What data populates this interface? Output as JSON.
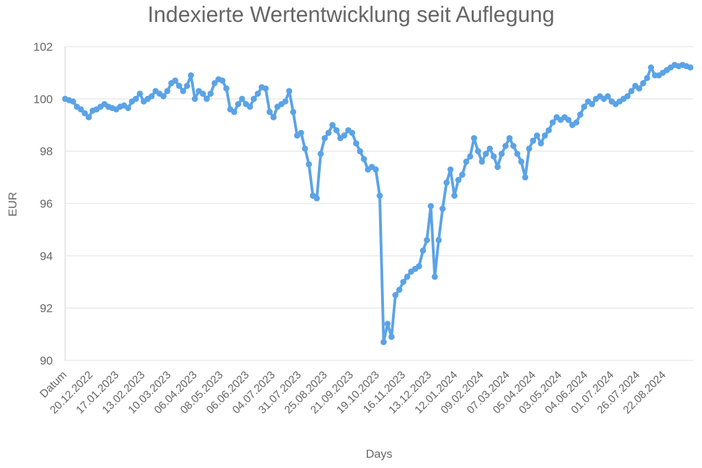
{
  "chart_data": {
    "type": "line",
    "title": "Indexierte Wertentwicklung seit Auflegung",
    "xlabel": "Days",
    "ylabel": "EUR",
    "ylim": [
      90,
      102
    ],
    "yticks": [
      90,
      92,
      94,
      96,
      98,
      100,
      102
    ],
    "grid": "horizontal",
    "line_color": "#5ba3e6",
    "x_tick_labels": [
      "Datum",
      "20.12.2022",
      "17.01.2023",
      "13.02.2023",
      "10.03.2023",
      "06.04.2023",
      "08.05.2023",
      "06.06.2023",
      "04.07.2023",
      "31.07.2023",
      "25.08.2023",
      "21.09.2023",
      "19.10.2023",
      "16.11.2023",
      "13.12.2023",
      "12.01.2024",
      "09.02.2024",
      "07.03.2024",
      "05.04.2024",
      "03.05.2024",
      "04.06.2024",
      "01.07.2024",
      "26.07.2024",
      "22.08.2024"
    ],
    "series": [
      {
        "values": [
          100.0,
          99.95,
          99.9,
          99.7,
          99.6,
          99.45,
          99.3,
          99.55,
          99.6,
          99.7,
          99.8,
          99.7,
          99.65,
          99.6,
          99.7,
          99.75,
          99.65,
          99.9,
          100.0,
          100.2,
          99.9,
          100.0,
          100.1,
          100.3,
          100.2,
          100.1,
          100.3,
          100.6,
          100.7,
          100.5,
          100.3,
          100.5,
          100.9,
          100.0,
          100.3,
          100.2,
          100.0,
          100.2,
          100.6,
          100.75,
          100.7,
          100.4,
          99.6,
          99.5,
          99.8,
          100.0,
          99.8,
          99.7,
          100.0,
          100.2,
          100.45,
          100.4,
          99.5,
          99.3,
          99.7,
          99.8,
          99.9,
          100.3,
          99.5,
          98.6,
          98.7,
          98.1,
          97.5,
          96.3,
          96.2,
          97.9,
          98.5,
          98.7,
          99.0,
          98.8,
          98.5,
          98.6,
          98.8,
          98.7,
          98.3,
          98.0,
          97.7,
          97.3,
          97.4,
          97.3,
          96.3,
          90.7,
          91.4,
          90.9,
          92.5,
          92.7,
          93.0,
          93.2,
          93.4,
          93.5,
          93.6,
          94.2,
          94.6,
          95.9,
          93.2,
          94.6,
          95.8,
          96.8,
          97.3,
          96.3,
          96.9,
          97.1,
          97.6,
          97.8,
          98.5,
          98.0,
          97.6,
          97.9,
          98.1,
          97.8,
          97.4,
          97.9,
          98.2,
          98.5,
          98.2,
          97.9,
          97.6,
          97.0,
          98.1,
          98.4,
          98.6,
          98.3,
          98.6,
          98.8,
          99.1,
          99.3,
          99.2,
          99.3,
          99.2,
          99.0,
          99.1,
          99.4,
          99.7,
          99.9,
          99.8,
          100.0,
          100.1,
          100.0,
          100.1,
          99.9,
          99.8,
          99.9,
          100.0,
          100.1,
          100.3,
          100.5,
          100.4,
          100.6,
          100.8,
          101.2,
          100.9,
          100.9,
          101.0,
          101.1,
          101.2,
          101.3,
          101.25,
          101.3,
          101.25,
          101.2
        ]
      }
    ]
  }
}
